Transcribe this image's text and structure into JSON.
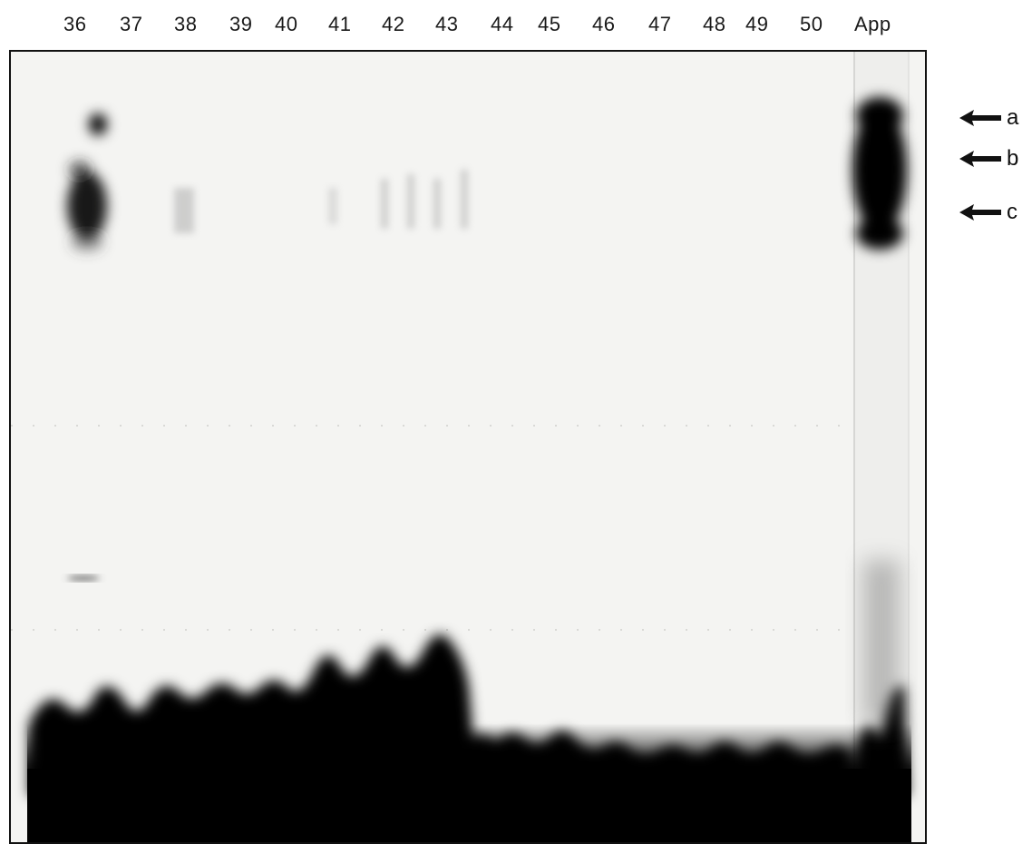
{
  "lanes": {
    "labels": [
      "36",
      "37",
      "38",
      "39",
      "40",
      "41",
      "42",
      "43",
      "44",
      "45",
      "46",
      "47",
      "48",
      "49",
      "50",
      "App"
    ]
  },
  "markers": {
    "a": "a",
    "b": "b",
    "c": "c"
  },
  "icons": {
    "marker_arrow": "left-arrow-icon"
  }
}
